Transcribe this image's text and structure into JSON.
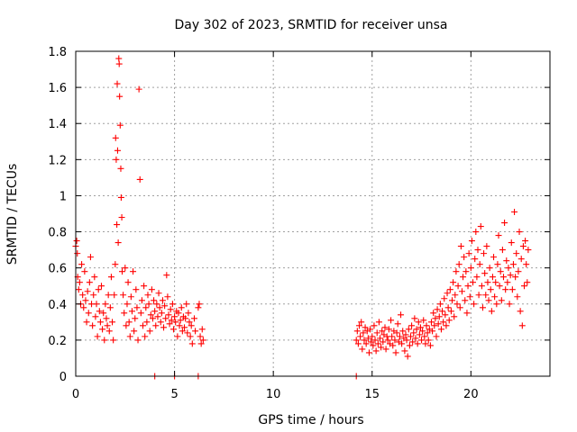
{
  "chart_data": {
    "type": "scatter",
    "title": "Day 302 of 2023, SRMTID for receiver unsa",
    "xlabel": "GPS time / hours",
    "ylabel": "SRMTID / TECUs",
    "xlim": [
      0,
      24
    ],
    "ylim": [
      0,
      1.8
    ],
    "xticks": [
      0,
      5,
      10,
      15,
      20
    ],
    "xtick_labels": [
      "0",
      "5",
      "10",
      "15",
      "20"
    ],
    "yticks": [
      0,
      0.2,
      0.4,
      0.6,
      0.8,
      1,
      1.2,
      1.4,
      1.6,
      1.8
    ],
    "ytick_labels": [
      "0",
      "0.2",
      "0.4",
      "0.6",
      "0.8",
      "1",
      "1.2",
      "1.4",
      "1.6",
      "1.8"
    ],
    "grid": true,
    "marker": "+",
    "color": "#ff0000",
    "series": [
      {
        "name": "SRMTID",
        "points": [
          [
            0.0,
            0.72
          ],
          [
            0.05,
            0.75
          ],
          [
            0.08,
            0.68
          ],
          [
            0.1,
            0.55
          ],
          [
            0.15,
            0.48
          ],
          [
            0.2,
            0.52
          ],
          [
            0.25,
            0.4
          ],
          [
            0.3,
            0.62
          ],
          [
            0.35,
            0.45
          ],
          [
            0.4,
            0.38
          ],
          [
            0.45,
            0.58
          ],
          [
            0.5,
            0.42
          ],
          [
            0.55,
            0.3
          ],
          [
            0.6,
            0.47
          ],
          [
            0.65,
            0.35
          ],
          [
            0.7,
            0.52
          ],
          [
            0.75,
            0.66
          ],
          [
            0.8,
            0.4
          ],
          [
            0.85,
            0.28
          ],
          [
            0.9,
            0.45
          ],
          [
            0.95,
            0.55
          ],
          [
            1.0,
            0.33
          ],
          [
            1.05,
            0.4
          ],
          [
            1.1,
            0.22
          ],
          [
            1.15,
            0.48
          ],
          [
            1.2,
            0.36
          ],
          [
            1.25,
            0.3
          ],
          [
            1.3,
            0.5
          ],
          [
            1.35,
            0.26
          ],
          [
            1.4,
            0.35
          ],
          [
            1.45,
            0.2
          ],
          [
            1.5,
            0.4
          ],
          [
            1.55,
            0.32
          ],
          [
            1.6,
            0.28
          ],
          [
            1.65,
            0.45
          ],
          [
            1.7,
            0.25
          ],
          [
            1.75,
            0.38
          ],
          [
            1.8,
            0.55
          ],
          [
            1.85,
            0.3
          ],
          [
            1.9,
            0.2
          ],
          [
            1.95,
            0.45
          ],
          [
            2.0,
            0.62
          ],
          [
            2.02,
            1.32
          ],
          [
            2.05,
            1.2
          ],
          [
            2.08,
            0.84
          ],
          [
            2.1,
            1.62
          ],
          [
            2.12,
            1.25
          ],
          [
            2.15,
            0.74
          ],
          [
            2.18,
            1.76
          ],
          [
            2.2,
            1.73
          ],
          [
            2.22,
            1.55
          ],
          [
            2.25,
            1.39
          ],
          [
            2.28,
            1.15
          ],
          [
            2.3,
            0.99
          ],
          [
            2.33,
            0.88
          ],
          [
            2.35,
            0.58
          ],
          [
            2.4,
            0.45
          ],
          [
            2.45,
            0.35
          ],
          [
            2.5,
            0.6
          ],
          [
            2.55,
            0.28
          ],
          [
            2.6,
            0.4
          ],
          [
            2.65,
            0.52
          ],
          [
            2.7,
            0.3
          ],
          [
            2.75,
            0.22
          ],
          [
            2.8,
            0.44
          ],
          [
            2.85,
            0.36
          ],
          [
            2.9,
            0.58
          ],
          [
            2.95,
            0.25
          ],
          [
            3.0,
            0.32
          ],
          [
            3.05,
            0.48
          ],
          [
            3.1,
            0.38
          ],
          [
            3.15,
            0.2
          ],
          [
            3.2,
            1.59
          ],
          [
            3.25,
            1.09
          ],
          [
            3.3,
            0.35
          ],
          [
            3.35,
            0.42
          ],
          [
            3.4,
            0.28
          ],
          [
            3.45,
            0.5
          ],
          [
            3.5,
            0.22
          ],
          [
            3.55,
            0.38
          ],
          [
            3.6,
            0.3
          ],
          [
            3.65,
            0.45
          ],
          [
            3.7,
            0.4
          ],
          [
            3.75,
            0.25
          ],
          [
            3.8,
            0.34
          ],
          [
            3.85,
            0.48
          ],
          [
            3.9,
            0.32
          ],
          [
            3.95,
            0.42
          ],
          [
            4.0,
            0.36
          ],
          [
            4.05,
            0.28
          ],
          [
            4.1,
            0.4
          ],
          [
            4.15,
            0.33
          ],
          [
            4.2,
            0.46
          ],
          [
            4.25,
            0.38
          ],
          [
            4.3,
            0.3
          ],
          [
            4.35,
            0.35
          ],
          [
            4.4,
            0.42
          ],
          [
            4.45,
            0.27
          ],
          [
            4.5,
            0.39
          ],
          [
            4.55,
            0.32
          ],
          [
            4.6,
            0.56
          ],
          [
            4.65,
            0.44
          ],
          [
            4.7,
            0.34
          ],
          [
            4.75,
            0.29
          ],
          [
            4.8,
            0.37
          ],
          [
            4.85,
            0.31
          ],
          [
            4.9,
            0.4
          ],
          [
            4.95,
            0.26
          ],
          [
            5.0,
            0.33
          ],
          [
            5.05,
            0.3
          ],
          [
            5.1,
            0.36
          ],
          [
            5.15,
            0.22
          ],
          [
            5.2,
            0.35
          ],
          [
            5.25,
            0.28
          ],
          [
            5.3,
            0.31
          ],
          [
            5.35,
            0.38
          ],
          [
            5.4,
            0.25
          ],
          [
            5.45,
            0.33
          ],
          [
            5.5,
            0.27
          ],
          [
            5.55,
            0.32
          ],
          [
            5.6,
            0.4
          ],
          [
            5.65,
            0.24
          ],
          [
            5.7,
            0.35
          ],
          [
            5.75,
            0.3
          ],
          [
            5.8,
            0.22
          ],
          [
            5.85,
            0.28
          ],
          [
            5.9,
            0.18
          ],
          [
            6.0,
            0.32
          ],
          [
            6.05,
            0.25
          ],
          [
            6.2,
            0.38
          ],
          [
            6.25,
            0.4
          ],
          [
            6.3,
            0.22
          ],
          [
            6.35,
            0.18
          ],
          [
            6.4,
            0.26
          ],
          [
            6.45,
            0.2
          ],
          [
            4.0,
            0.0
          ],
          [
            5.0,
            0.0
          ],
          [
            6.2,
            0.0
          ],
          [
            14.2,
            0.0
          ],
          [
            14.2,
            0.2
          ],
          [
            14.25,
            0.25
          ],
          [
            14.3,
            0.18
          ],
          [
            14.35,
            0.28
          ],
          [
            14.4,
            0.22
          ],
          [
            14.45,
            0.3
          ],
          [
            14.5,
            0.15
          ],
          [
            14.55,
            0.24
          ],
          [
            14.6,
            0.2
          ],
          [
            14.65,
            0.27
          ],
          [
            14.7,
            0.18
          ],
          [
            14.75,
            0.25
          ],
          [
            14.8,
            0.21
          ],
          [
            14.85,
            0.13
          ],
          [
            14.9,
            0.26
          ],
          [
            14.95,
            0.19
          ],
          [
            15.0,
            0.22
          ],
          [
            15.05,
            0.17
          ],
          [
            15.1,
            0.28
          ],
          [
            15.15,
            0.2
          ],
          [
            15.2,
            0.14
          ],
          [
            15.25,
            0.24
          ],
          [
            15.3,
            0.18
          ],
          [
            15.35,
            0.3
          ],
          [
            15.4,
            0.21
          ],
          [
            15.45,
            0.16
          ],
          [
            15.5,
            0.25
          ],
          [
            15.55,
            0.19
          ],
          [
            15.6,
            0.23
          ],
          [
            15.65,
            0.27
          ],
          [
            15.7,
            0.15
          ],
          [
            15.75,
            0.22
          ],
          [
            15.8,
            0.2
          ],
          [
            15.85,
            0.26
          ],
          [
            15.9,
            0.18
          ],
          [
            15.95,
            0.31
          ],
          [
            16.0,
            0.22
          ],
          [
            16.05,
            0.17
          ],
          [
            16.1,
            0.25
          ],
          [
            16.15,
            0.2
          ],
          [
            16.2,
            0.13
          ],
          [
            16.25,
            0.24
          ],
          [
            16.3,
            0.29
          ],
          [
            16.35,
            0.19
          ],
          [
            16.4,
            0.22
          ],
          [
            16.45,
            0.34
          ],
          [
            16.5,
            0.18
          ],
          [
            16.55,
            0.25
          ],
          [
            16.6,
            0.21
          ],
          [
            16.65,
            0.14
          ],
          [
            16.7,
            0.23
          ],
          [
            16.75,
            0.2
          ],
          [
            16.8,
            0.11
          ],
          [
            16.85,
            0.26
          ],
          [
            16.9,
            0.17
          ],
          [
            16.95,
            0.22
          ],
          [
            17.0,
            0.28
          ],
          [
            17.05,
            0.19
          ],
          [
            17.1,
            0.24
          ],
          [
            17.15,
            0.32
          ],
          [
            17.2,
            0.21
          ],
          [
            17.25,
            0.26
          ],
          [
            17.3,
            0.18
          ],
          [
            17.35,
            0.3
          ],
          [
            17.4,
            0.23
          ],
          [
            17.45,
            0.27
          ],
          [
            17.5,
            0.2
          ],
          [
            17.55,
            0.25
          ],
          [
            17.6,
            0.31
          ],
          [
            17.65,
            0.22
          ],
          [
            17.7,
            0.18
          ],
          [
            17.75,
            0.28
          ],
          [
            17.8,
            0.24
          ],
          [
            17.85,
            0.2
          ],
          [
            17.9,
            0.26
          ],
          [
            17.95,
            0.17
          ],
          [
            18.0,
            0.3
          ],
          [
            18.05,
            0.25
          ],
          [
            18.1,
            0.35
          ],
          [
            18.15,
            0.28
          ],
          [
            18.2,
            0.32
          ],
          [
            18.25,
            0.22
          ],
          [
            18.3,
            0.37
          ],
          [
            18.35,
            0.29
          ],
          [
            18.4,
            0.33
          ],
          [
            18.45,
            0.4
          ],
          [
            18.5,
            0.26
          ],
          [
            18.55,
            0.36
          ],
          [
            18.6,
            0.3
          ],
          [
            18.65,
            0.43
          ],
          [
            18.7,
            0.34
          ],
          [
            18.75,
            0.28
          ],
          [
            18.8,
            0.46
          ],
          [
            18.85,
            0.38
          ],
          [
            18.9,
            0.31
          ],
          [
            18.95,
            0.48
          ],
          [
            19.0,
            0.36
          ],
          [
            19.05,
            0.42
          ],
          [
            19.1,
            0.52
          ],
          [
            19.15,
            0.33
          ],
          [
            19.2,
            0.45
          ],
          [
            19.25,
            0.58
          ],
          [
            19.3,
            0.4
          ],
          [
            19.35,
            0.5
          ],
          [
            19.4,
            0.62
          ],
          [
            19.45,
            0.38
          ],
          [
            19.5,
            0.72
          ],
          [
            19.55,
            0.47
          ],
          [
            19.6,
            0.55
          ],
          [
            19.65,
            0.66
          ],
          [
            19.7,
            0.42
          ],
          [
            19.75,
            0.58
          ],
          [
            19.8,
            0.35
          ],
          [
            19.85,
            0.5
          ],
          [
            19.9,
            0.68
          ],
          [
            19.95,
            0.44
          ],
          [
            20.0,
            0.6
          ],
          [
            20.05,
            0.75
          ],
          [
            20.1,
            0.52
          ],
          [
            20.15,
            0.4
          ],
          [
            20.2,
            0.65
          ],
          [
            20.25,
            0.8
          ],
          [
            20.3,
            0.55
          ],
          [
            20.35,
            0.7
          ],
          [
            20.4,
            0.45
          ],
          [
            20.45,
            0.62
          ],
          [
            20.5,
            0.83
          ],
          [
            20.55,
            0.5
          ],
          [
            20.6,
            0.38
          ],
          [
            20.65,
            0.68
          ],
          [
            20.7,
            0.57
          ],
          [
            20.75,
            0.45
          ],
          [
            20.8,
            0.72
          ],
          [
            20.85,
            0.52
          ],
          [
            20.9,
            0.42
          ],
          [
            20.95,
            0.6
          ],
          [
            21.0,
            0.48
          ],
          [
            21.05,
            0.36
          ],
          [
            21.1,
            0.55
          ],
          [
            21.15,
            0.66
          ],
          [
            21.2,
            0.44
          ],
          [
            21.25,
            0.52
          ],
          [
            21.3,
            0.4
          ],
          [
            21.35,
            0.62
          ],
          [
            21.4,
            0.78
          ],
          [
            21.45,
            0.5
          ],
          [
            21.5,
            0.58
          ],
          [
            21.55,
            0.42
          ],
          [
            21.6,
            0.7
          ],
          [
            21.65,
            0.55
          ],
          [
            21.7,
            0.85
          ],
          [
            21.75,
            0.48
          ],
          [
            21.8,
            0.64
          ],
          [
            21.85,
            0.52
          ],
          [
            21.9,
            0.6
          ],
          [
            21.95,
            0.4
          ],
          [
            22.0,
            0.56
          ],
          [
            22.05,
            0.74
          ],
          [
            22.1,
            0.48
          ],
          [
            22.15,
            0.62
          ],
          [
            22.2,
            0.91
          ],
          [
            22.25,
            0.55
          ],
          [
            22.3,
            0.68
          ],
          [
            22.35,
            0.44
          ],
          [
            22.4,
            0.58
          ],
          [
            22.45,
            0.8
          ],
          [
            22.5,
            0.36
          ],
          [
            22.55,
            0.65
          ],
          [
            22.6,
            0.28
          ],
          [
            22.65,
            0.72
          ],
          [
            22.7,
            0.5
          ],
          [
            22.75,
            0.75
          ],
          [
            22.8,
            0.62
          ],
          [
            22.85,
            0.52
          ],
          [
            22.9,
            0.7
          ]
        ]
      }
    ]
  }
}
